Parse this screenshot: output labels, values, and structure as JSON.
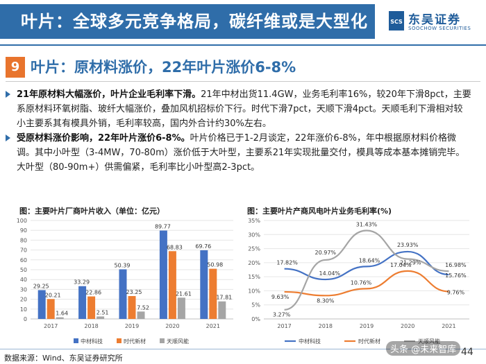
{
  "header": {
    "title": "叶片：全球多元竞争格局，碳纤维或是大型化趋势",
    "logo_cn": "东吴证券",
    "logo_en": "SOOCHOW SECURITIES",
    "logo_mark": "SCS"
  },
  "section": {
    "number": "9",
    "title": "叶片：原材料涨价，22年叶片涨价6-8%"
  },
  "body": {
    "p1_bold": "21年原材料大幅涨价，叶片企业毛利率下滑。",
    "p1_text": "21年中材出货11.4GW，业务毛利率16%，较20年下滑8pct，主要系原材料环氧树脂、玻纤大幅涨价，叠加风机招标价下行。时代下滑7pct，天顺下滑4pct。天顺毛利下滑相对较小主要系其有模具外销，毛利率较高，国内外合计约30%左右。",
    "p2_bold": "受原材料涨价影响，22年叶片涨价6-8%。",
    "p2_text": "叶片价格已于1-2月谈定，22年涨价6-8%，年中根据原材料价格微调。其中小叶型（3-4MW，70-80m）涨价低于大叶型，主要系21年实现批量交付，模具等成本基本摊销完毕。大叶型（80-90m+）供需偏紧，毛利率比小叶型高2-3pct。"
  },
  "charts": {
    "left_title": "图：主要叶片厂商叶片收入（单位：亿元）",
    "right_title": "图：主要叶片产商风电叶片业务毛利率(%)"
  },
  "chart_data": [
    {
      "type": "bar",
      "title": "图：主要叶片厂商叶片收入（单位：亿元）",
      "categories": [
        "2017",
        "2018",
        "2019",
        "2020",
        "2021"
      ],
      "ylim": [
        0,
        100
      ],
      "yticks": [
        "0",
        "10",
        "20",
        "30",
        "40",
        "50",
        "60",
        "70",
        "80",
        "90",
        "100"
      ],
      "series": [
        {
          "name": "中材科技",
          "color": "#4472c4",
          "values": [
            29.25,
            33.29,
            50.39,
            89.77,
            69.76
          ],
          "labels": [
            "29.25",
            "33.29",
            "50.39",
            "89.77",
            "69.76"
          ]
        },
        {
          "name": "时代新材",
          "color": "#ed7d31",
          "values": [
            20.21,
            22.86,
            23.25,
            68.83,
            50.98
          ],
          "labels": [
            "20.21",
            "22.86",
            "23.25",
            "68.83",
            "50.98"
          ]
        },
        {
          "name": "天顺风能",
          "color": "#a5a5a5",
          "values": [
            1.64,
            2.51,
            7.52,
            21.61,
            17.81
          ],
          "labels": [
            "1.64",
            "2.51",
            "7.52",
            "21.61",
            "17.81"
          ]
        }
      ]
    },
    {
      "type": "line",
      "title": "图：主要叶片产商风电叶片业务毛利率(%)",
      "categories": [
        "2017",
        "2018",
        "2019",
        "2020",
        "2021"
      ],
      "ylim": [
        0,
        35
      ],
      "yticks": [
        "0%",
        "5%",
        "10%",
        "15%",
        "20%",
        "25%",
        "30%",
        "35%"
      ],
      "series": [
        {
          "name": "中材科技",
          "color": "#4472c4",
          "values": [
            17.82,
            14.04,
            18.64,
            23.93,
            15.76
          ],
          "labels": [
            "17.82%",
            "14.04%",
            "18.64%",
            "23.93%",
            "15.76%"
          ]
        },
        {
          "name": "时代新材",
          "color": "#ed7d31",
          "values": [
            9.63,
            8.3,
            10.76,
            17.04,
            9.76
          ],
          "labels": [
            "9.63%",
            "8.30%",
            "10.76%",
            "17.04%",
            "9.76%"
          ]
        },
        {
          "name": "天顺风能",
          "color": "#a5a5a5",
          "values": [
            3.27,
            20.97,
            31.43,
            21.29,
            16.98
          ],
          "labels": [
            "3.27%",
            "20.97%",
            "31.43%",
            "21.29%",
            "16.98%"
          ]
        }
      ]
    }
  ],
  "footer": {
    "source": "数据来源：Wind、东吴证券研究所",
    "page": "44",
    "watermark": "头条 @未来智库"
  }
}
